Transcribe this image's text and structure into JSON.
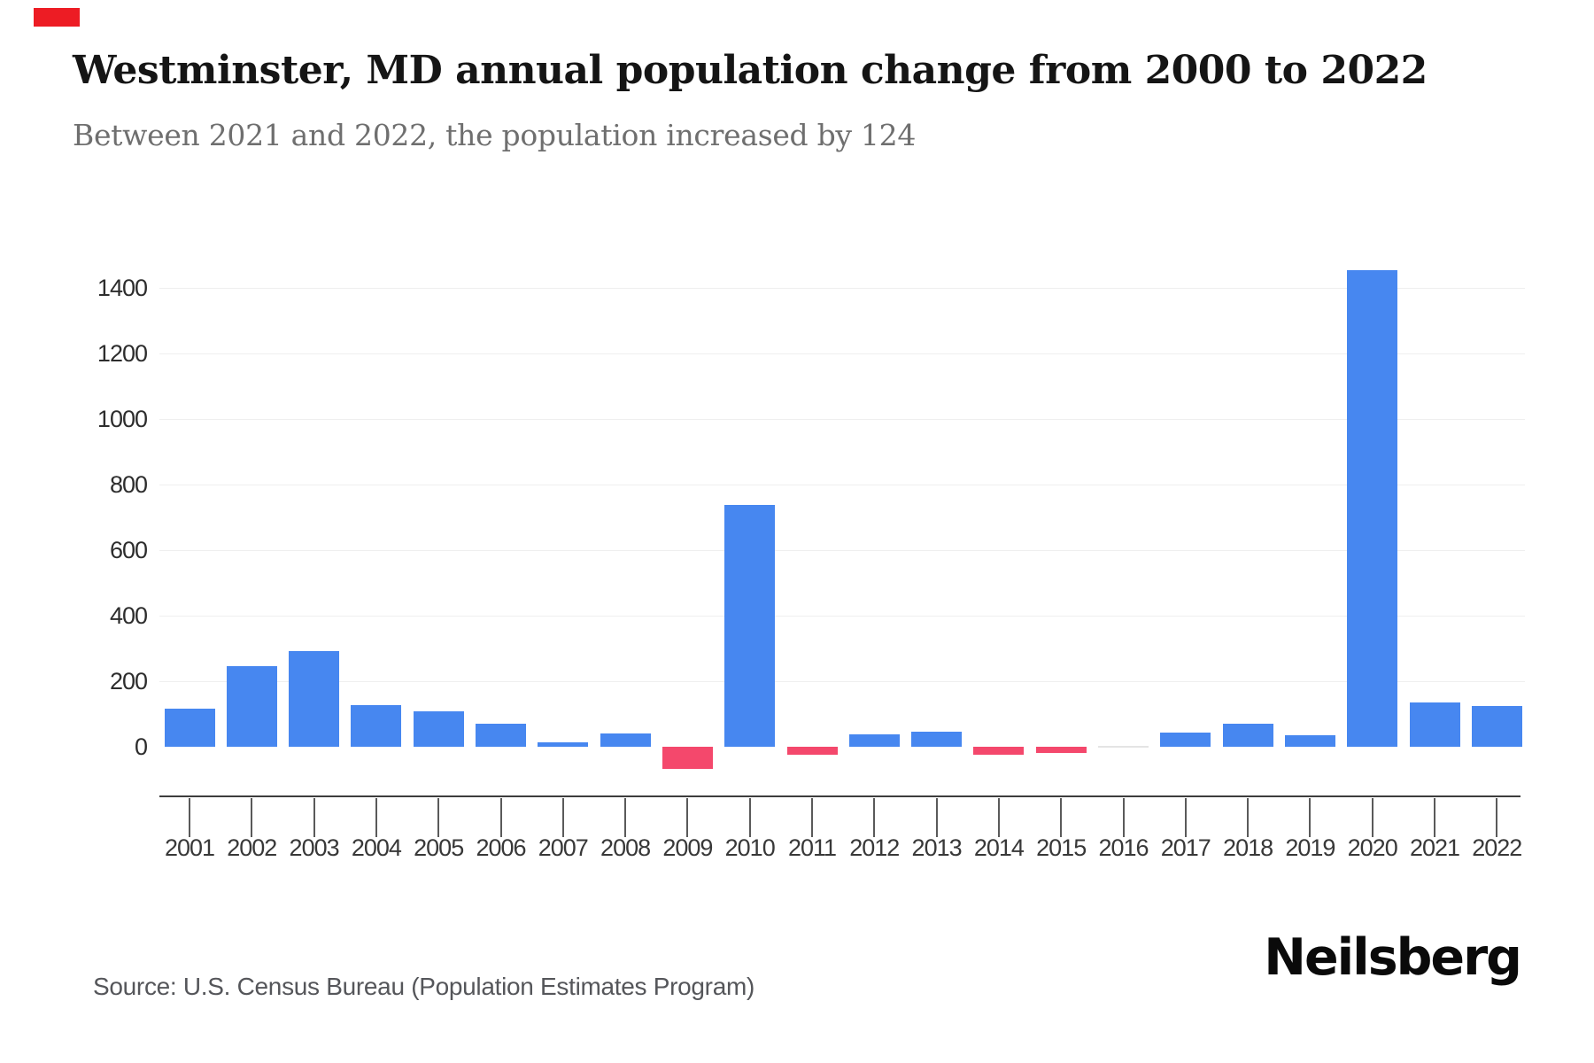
{
  "page": {
    "title": "Westminster, MD annual population change from 2000 to 2022",
    "subtitle": "Between 2021 and 2022, the population increased by 124",
    "source": "Source: U.S. Census Bureau (Population Estimates Program)",
    "brand": "Neilsberg",
    "marker_color": "#ed1c24"
  },
  "chart_data": {
    "type": "bar",
    "title": "Westminster, MD annual population change from 2000 to 2022",
    "subtitle": "Between 2021 and 2022, the population increased by 124",
    "categories": [
      "2001",
      "2002",
      "2003",
      "2004",
      "2005",
      "2006",
      "2007",
      "2008",
      "2009",
      "2010",
      "2011",
      "2012",
      "2013",
      "2014",
      "2015",
      "2016",
      "2017",
      "2018",
      "2019",
      "2020",
      "2021",
      "2022"
    ],
    "values": [
      115,
      245,
      293,
      128,
      107,
      69,
      14,
      40,
      -67,
      737,
      -24,
      37,
      46,
      -24,
      -19,
      0,
      44,
      70,
      35,
      1453,
      134,
      124
    ],
    "yticks": [
      0,
      200,
      400,
      600,
      800,
      1000,
      1200,
      1400
    ],
    "ylim": [
      -100,
      1500
    ],
    "xlabel": "",
    "ylabel": "",
    "grid": "horizontal",
    "legend": "none",
    "colors": {
      "positive": "#4787f0",
      "negative": "#f4486c",
      "zero": "#e4e4e4"
    }
  }
}
